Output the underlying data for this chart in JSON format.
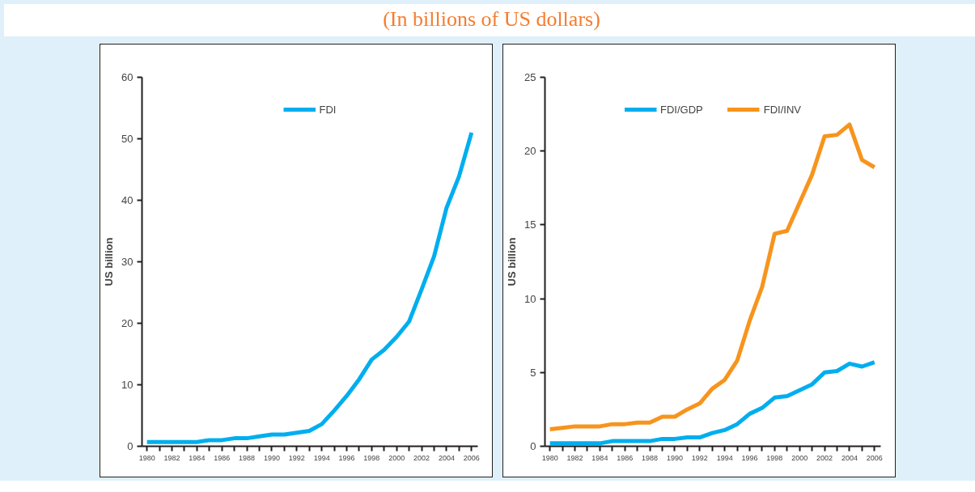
{
  "chart_data": [
    {
      "type": "line",
      "subtitle": "(In billions of US dollars)",
      "ylabel": "US billion",
      "x": [
        1980,
        1981,
        1982,
        1983,
        1984,
        1985,
        1986,
        1987,
        1988,
        1989,
        1990,
        1991,
        1992,
        1993,
        1994,
        1995,
        1996,
        1997,
        1998,
        1999,
        2000,
        2001,
        2002,
        2003,
        2004,
        2005,
        2006
      ],
      "series": [
        {
          "name": "FDI",
          "color": "#00aeef",
          "values": [
            0.7,
            0.7,
            0.7,
            0.7,
            0.7,
            1.0,
            1.0,
            1.3,
            1.3,
            1.6,
            1.9,
            1.9,
            2.2,
            2.5,
            3.6,
            5.8,
            8.2,
            10.9,
            14.1,
            15.7,
            17.8,
            20.3,
            25.5,
            30.9,
            38.8,
            43.9,
            51
          ]
        }
      ],
      "xlim": [
        1979.6,
        2006.5
      ],
      "ylim": [
        0,
        60
      ],
      "yticks": [
        0,
        10,
        20,
        30,
        40,
        50,
        60
      ],
      "xticks": [
        1980,
        {
          "value": 1981,
          "label": null
        },
        1982,
        {
          "value": 1983,
          "label": null
        },
        1984,
        {
          "value": 1985,
          "label": null
        },
        1986,
        {
          "value": 1987,
          "label": null
        },
        1988,
        {
          "value": 1989,
          "label": null
        },
        1990,
        {
          "value": 1991,
          "label": null
        },
        1992,
        {
          "value": 1993,
          "label": null
        },
        1994,
        {
          "value": 1995,
          "label": null
        },
        1996,
        {
          "value": 1997,
          "label": null
        },
        1998,
        {
          "value": 1999,
          "label": null
        },
        2000,
        {
          "value": 2001,
          "label": null
        },
        2002,
        {
          "value": 2003,
          "label": null
        },
        2004,
        {
          "value": 2005,
          "label": null
        },
        2006
      ],
      "grid": false,
      "legend": "top",
      "line_style": "solid",
      "marker": "none"
    },
    {
      "type": "line",
      "ylabel": "US billion",
      "x": [
        1980,
        1981,
        1982,
        1983,
        1984,
        1985,
        1986,
        1987,
        1988,
        1989,
        1990,
        1991,
        1992,
        1993,
        1994,
        1995,
        1996,
        1997,
        1998,
        1999,
        2000,
        2001,
        2002,
        2003,
        2004,
        2005,
        2006
      ],
      "series": [
        {
          "name": "FDI/GDP",
          "color": "#00aeef",
          "values": [
            0.2,
            0.2,
            0.2,
            0.2,
            0.2,
            0.35,
            0.35,
            0.35,
            0.35,
            0.5,
            0.5,
            0.6,
            0.6,
            0.9,
            1.1,
            1.5,
            2.2,
            2.6,
            3.3,
            3.4,
            3.8,
            4.2,
            5.0,
            5.1,
            5.6,
            5.4,
            5.7
          ]
        },
        {
          "name": "FDI/INV",
          "color": "#f7941d",
          "values": [
            1.15,
            1.25,
            1.35,
            1.35,
            1.35,
            1.5,
            1.5,
            1.6,
            1.6,
            2.0,
            2.0,
            2.5,
            2.9,
            3.9,
            4.5,
            5.8,
            8.5,
            10.8,
            14.4,
            14.6,
            16.5,
            18.4,
            21.0,
            21.1,
            21.8,
            19.4,
            18.9
          ]
        }
      ],
      "xlim": [
        1979.6,
        2006.5
      ],
      "ylim": [
        0,
        25
      ],
      "yticks": [
        0,
        5,
        10,
        15,
        20,
        25
      ],
      "xticks": [
        1980,
        {
          "value": 1981,
          "label": null
        },
        1982,
        {
          "value": 1983,
          "label": null
        },
        1984,
        {
          "value": 1985,
          "label": null
        },
        1986,
        {
          "value": 1987,
          "label": null
        },
        1988,
        {
          "value": 1989,
          "label": null
        },
        1990,
        {
          "value": 1991,
          "label": null
        },
        1992,
        {
          "value": 1993,
          "label": null
        },
        1994,
        {
          "value": 1995,
          "label": null
        },
        1996,
        {
          "value": 1997,
          "label": null
        },
        1998,
        {
          "value": 1999,
          "label": null
        },
        2000,
        {
          "value": 2001,
          "label": null
        },
        2002,
        {
          "value": 2003,
          "label": null
        },
        2004,
        {
          "value": 2005,
          "label": null
        },
        2006
      ],
      "grid": false,
      "legend": "top",
      "line_style": "solid",
      "marker": "none"
    }
  ]
}
